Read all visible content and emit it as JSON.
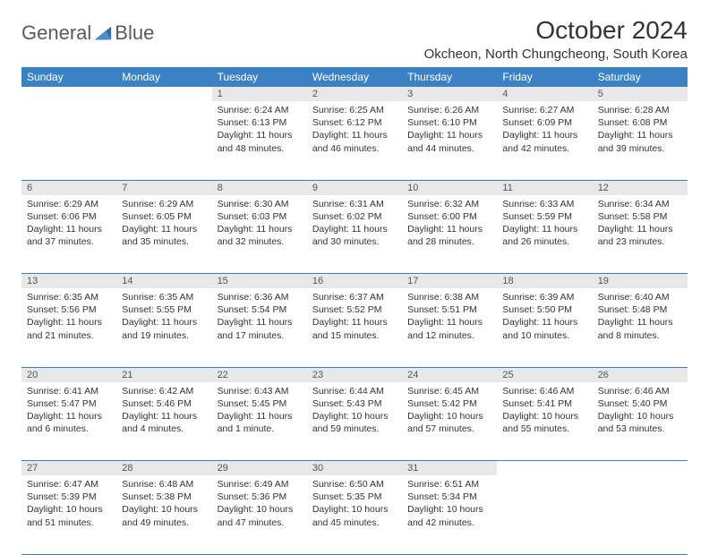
{
  "brand": {
    "name1": "General",
    "name2": "Blue"
  },
  "header": {
    "title": "October 2024",
    "location": "Okcheon, North Chungcheong, South Korea"
  },
  "colors": {
    "header_bg": "#3b82c4",
    "header_text": "#ffffff",
    "daynum_bg": "#e8e8e8",
    "border": "#3b82c4",
    "text": "#333333"
  },
  "day_labels": [
    "Sunday",
    "Monday",
    "Tuesday",
    "Wednesday",
    "Thursday",
    "Friday",
    "Saturday"
  ],
  "weeks": [
    {
      "nums": [
        "",
        "",
        "1",
        "2",
        "3",
        "4",
        "5"
      ],
      "cells": [
        null,
        null,
        {
          "sunrise": "Sunrise: 6:24 AM",
          "sunset": "Sunset: 6:13 PM",
          "day1": "Daylight: 11 hours",
          "day2": "and 48 minutes."
        },
        {
          "sunrise": "Sunrise: 6:25 AM",
          "sunset": "Sunset: 6:12 PM",
          "day1": "Daylight: 11 hours",
          "day2": "and 46 minutes."
        },
        {
          "sunrise": "Sunrise: 6:26 AM",
          "sunset": "Sunset: 6:10 PM",
          "day1": "Daylight: 11 hours",
          "day2": "and 44 minutes."
        },
        {
          "sunrise": "Sunrise: 6:27 AM",
          "sunset": "Sunset: 6:09 PM",
          "day1": "Daylight: 11 hours",
          "day2": "and 42 minutes."
        },
        {
          "sunrise": "Sunrise: 6:28 AM",
          "sunset": "Sunset: 6:08 PM",
          "day1": "Daylight: 11 hours",
          "day2": "and 39 minutes."
        }
      ]
    },
    {
      "nums": [
        "6",
        "7",
        "8",
        "9",
        "10",
        "11",
        "12"
      ],
      "cells": [
        {
          "sunrise": "Sunrise: 6:29 AM",
          "sunset": "Sunset: 6:06 PM",
          "day1": "Daylight: 11 hours",
          "day2": "and 37 minutes."
        },
        {
          "sunrise": "Sunrise: 6:29 AM",
          "sunset": "Sunset: 6:05 PM",
          "day1": "Daylight: 11 hours",
          "day2": "and 35 minutes."
        },
        {
          "sunrise": "Sunrise: 6:30 AM",
          "sunset": "Sunset: 6:03 PM",
          "day1": "Daylight: 11 hours",
          "day2": "and 32 minutes."
        },
        {
          "sunrise": "Sunrise: 6:31 AM",
          "sunset": "Sunset: 6:02 PM",
          "day1": "Daylight: 11 hours",
          "day2": "and 30 minutes."
        },
        {
          "sunrise": "Sunrise: 6:32 AM",
          "sunset": "Sunset: 6:00 PM",
          "day1": "Daylight: 11 hours",
          "day2": "and 28 minutes."
        },
        {
          "sunrise": "Sunrise: 6:33 AM",
          "sunset": "Sunset: 5:59 PM",
          "day1": "Daylight: 11 hours",
          "day2": "and 26 minutes."
        },
        {
          "sunrise": "Sunrise: 6:34 AM",
          "sunset": "Sunset: 5:58 PM",
          "day1": "Daylight: 11 hours",
          "day2": "and 23 minutes."
        }
      ]
    },
    {
      "nums": [
        "13",
        "14",
        "15",
        "16",
        "17",
        "18",
        "19"
      ],
      "cells": [
        {
          "sunrise": "Sunrise: 6:35 AM",
          "sunset": "Sunset: 5:56 PM",
          "day1": "Daylight: 11 hours",
          "day2": "and 21 minutes."
        },
        {
          "sunrise": "Sunrise: 6:35 AM",
          "sunset": "Sunset: 5:55 PM",
          "day1": "Daylight: 11 hours",
          "day2": "and 19 minutes."
        },
        {
          "sunrise": "Sunrise: 6:36 AM",
          "sunset": "Sunset: 5:54 PM",
          "day1": "Daylight: 11 hours",
          "day2": "and 17 minutes."
        },
        {
          "sunrise": "Sunrise: 6:37 AM",
          "sunset": "Sunset: 5:52 PM",
          "day1": "Daylight: 11 hours",
          "day2": "and 15 minutes."
        },
        {
          "sunrise": "Sunrise: 6:38 AM",
          "sunset": "Sunset: 5:51 PM",
          "day1": "Daylight: 11 hours",
          "day2": "and 12 minutes."
        },
        {
          "sunrise": "Sunrise: 6:39 AM",
          "sunset": "Sunset: 5:50 PM",
          "day1": "Daylight: 11 hours",
          "day2": "and 10 minutes."
        },
        {
          "sunrise": "Sunrise: 6:40 AM",
          "sunset": "Sunset: 5:48 PM",
          "day1": "Daylight: 11 hours",
          "day2": "and 8 minutes."
        }
      ]
    },
    {
      "nums": [
        "20",
        "21",
        "22",
        "23",
        "24",
        "25",
        "26"
      ],
      "cells": [
        {
          "sunrise": "Sunrise: 6:41 AM",
          "sunset": "Sunset: 5:47 PM",
          "day1": "Daylight: 11 hours",
          "day2": "and 6 minutes."
        },
        {
          "sunrise": "Sunrise: 6:42 AM",
          "sunset": "Sunset: 5:46 PM",
          "day1": "Daylight: 11 hours",
          "day2": "and 4 minutes."
        },
        {
          "sunrise": "Sunrise: 6:43 AM",
          "sunset": "Sunset: 5:45 PM",
          "day1": "Daylight: 11 hours",
          "day2": "and 1 minute."
        },
        {
          "sunrise": "Sunrise: 6:44 AM",
          "sunset": "Sunset: 5:43 PM",
          "day1": "Daylight: 10 hours",
          "day2": "and 59 minutes."
        },
        {
          "sunrise": "Sunrise: 6:45 AM",
          "sunset": "Sunset: 5:42 PM",
          "day1": "Daylight: 10 hours",
          "day2": "and 57 minutes."
        },
        {
          "sunrise": "Sunrise: 6:46 AM",
          "sunset": "Sunset: 5:41 PM",
          "day1": "Daylight: 10 hours",
          "day2": "and 55 minutes."
        },
        {
          "sunrise": "Sunrise: 6:46 AM",
          "sunset": "Sunset: 5:40 PM",
          "day1": "Daylight: 10 hours",
          "day2": "and 53 minutes."
        }
      ]
    },
    {
      "nums": [
        "27",
        "28",
        "29",
        "30",
        "31",
        "",
        ""
      ],
      "cells": [
        {
          "sunrise": "Sunrise: 6:47 AM",
          "sunset": "Sunset: 5:39 PM",
          "day1": "Daylight: 10 hours",
          "day2": "and 51 minutes."
        },
        {
          "sunrise": "Sunrise: 6:48 AM",
          "sunset": "Sunset: 5:38 PM",
          "day1": "Daylight: 10 hours",
          "day2": "and 49 minutes."
        },
        {
          "sunrise": "Sunrise: 6:49 AM",
          "sunset": "Sunset: 5:36 PM",
          "day1": "Daylight: 10 hours",
          "day2": "and 47 minutes."
        },
        {
          "sunrise": "Sunrise: 6:50 AM",
          "sunset": "Sunset: 5:35 PM",
          "day1": "Daylight: 10 hours",
          "day2": "and 45 minutes."
        },
        {
          "sunrise": "Sunrise: 6:51 AM",
          "sunset": "Sunset: 5:34 PM",
          "day1": "Daylight: 10 hours",
          "day2": "and 42 minutes."
        },
        null,
        null
      ]
    }
  ]
}
